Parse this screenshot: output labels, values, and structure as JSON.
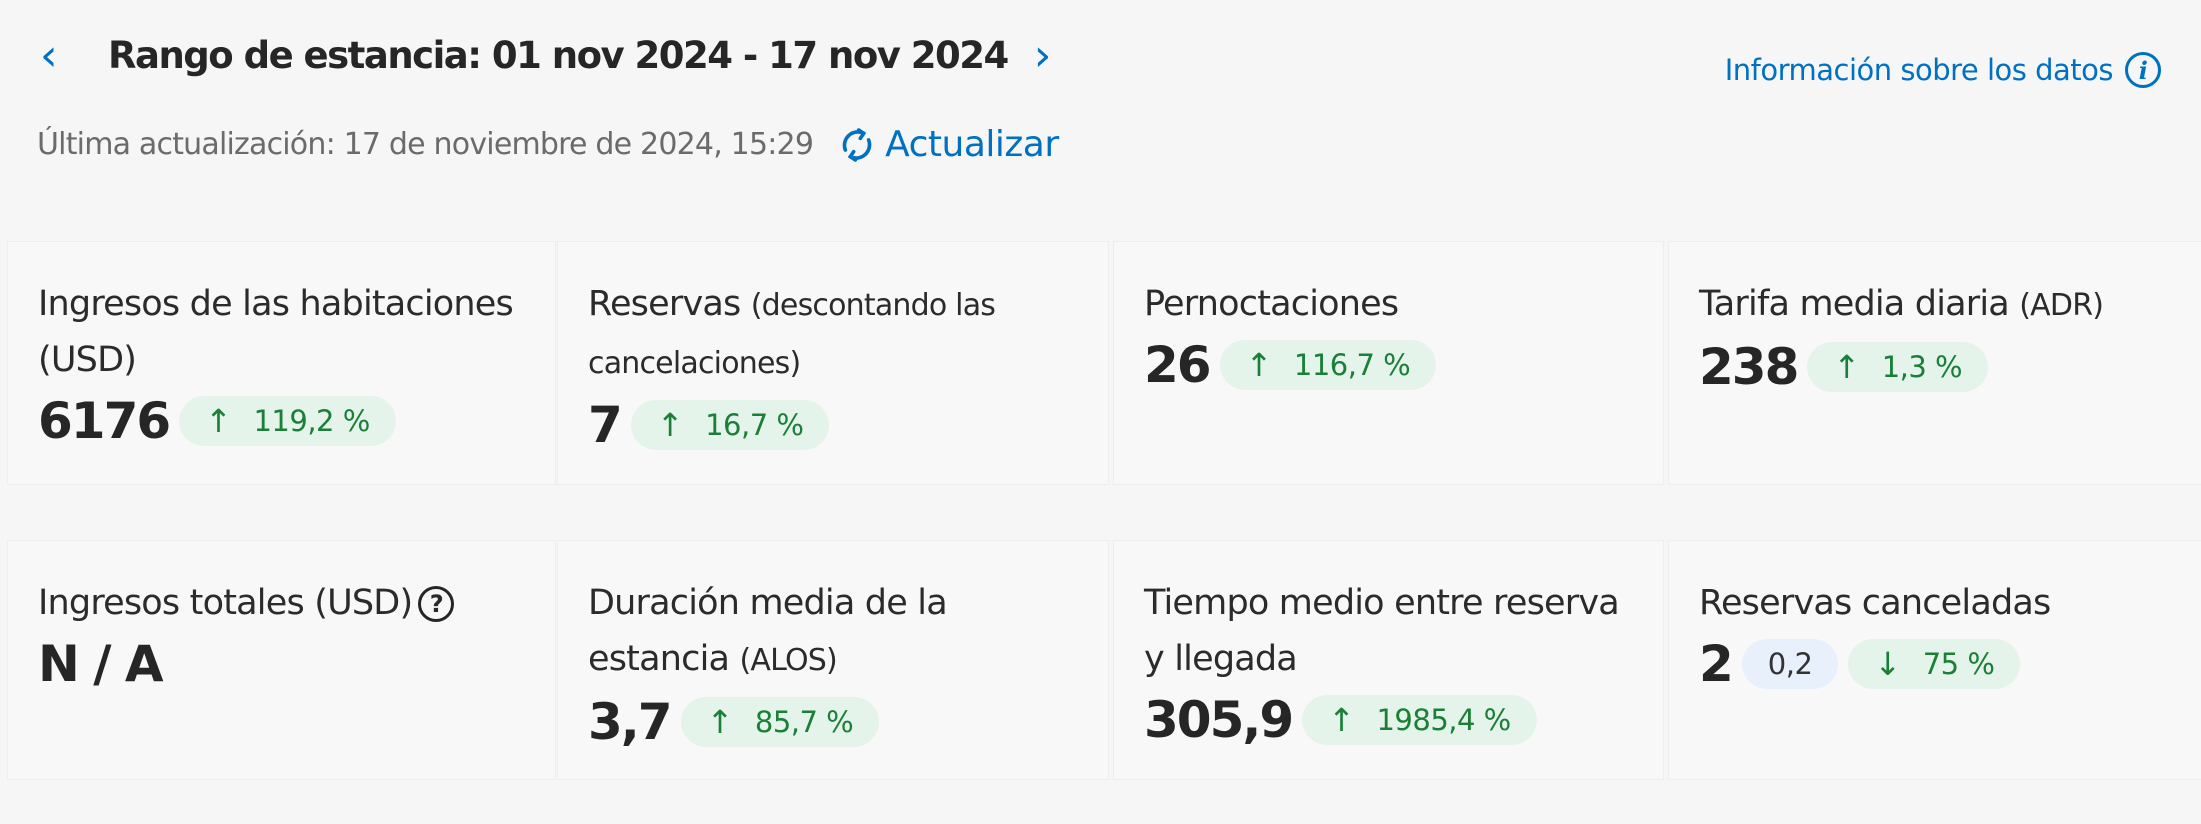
{
  "header": {
    "title": "Rango de estancia: 01 nov 2024 - 17 nov 2024",
    "prev_icon": "chevron-left-icon",
    "next_icon": "chevron-right-icon",
    "info_link": "Información sobre los datos",
    "last_updated": "Última actualización: 17 de noviembre de 2024, 15:29",
    "refresh_label": "Actualizar"
  },
  "colors": {
    "accent": "#0071c2",
    "positive_bg": "#e5f4ea",
    "positive_text": "#1a7f37",
    "neutral_bg": "#e8f0fc"
  },
  "cards": [
    {
      "title": "Ingresos de las habitaciones (USD)",
      "subtitle": "",
      "value": "6176",
      "badges": [
        {
          "dir": "up",
          "text": "119,2 %"
        }
      ]
    },
    {
      "title": "Reservas",
      "subtitle": "(descontando las cancelaciones)",
      "value": "7",
      "badges": [
        {
          "dir": "up",
          "text": "16,7 %"
        }
      ]
    },
    {
      "title": "Pernoctaciones",
      "subtitle": "",
      "value": "26",
      "badges": [
        {
          "dir": "up",
          "text": "116,7 %"
        }
      ]
    },
    {
      "title": "Tarifa media diaria",
      "subtitle": "(ADR)",
      "value": "238",
      "badges": [
        {
          "dir": "up",
          "text": "1,3 %"
        }
      ]
    },
    {
      "title": "Ingresos totales (USD)",
      "subtitle": "",
      "value": "N / A",
      "help": true,
      "badges": []
    },
    {
      "title": "Duración media de la estancia",
      "subtitle": "(ALOS)",
      "value": "3,7",
      "badges": [
        {
          "dir": "up",
          "text": "85,7 %"
        }
      ]
    },
    {
      "title": "Tiempo medio entre reserva y llegada",
      "subtitle": "",
      "value": "305,9",
      "badges": [
        {
          "dir": "up",
          "text": "1985,4 %"
        }
      ]
    },
    {
      "title": "Reservas canceladas",
      "subtitle": "",
      "value": "2",
      "badges": [
        {
          "dir": "none",
          "text": "0,2",
          "style": "blue"
        },
        {
          "dir": "down",
          "text": "75 %"
        }
      ]
    }
  ]
}
